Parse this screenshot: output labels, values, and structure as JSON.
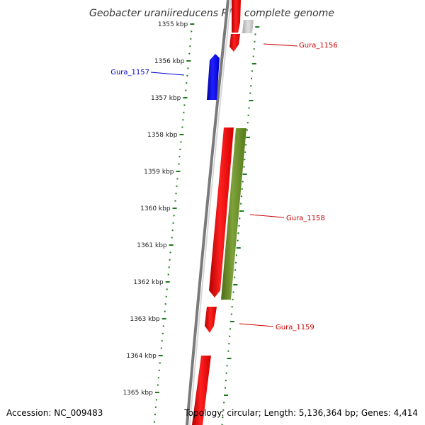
{
  "title": "Geobacter uraniireducens Rf4, complete genome",
  "positions": [
    "1355 kbp",
    "1356 kbp",
    "1357 kbp",
    "1358 kbp",
    "1359 kbp",
    "1360 kbp",
    "1361 kbp",
    "1362 kbp",
    "1363 kbp",
    "1364 kbp",
    "1365 kbp"
  ],
  "gene_labels": {
    "g1156": "Gura_1156",
    "g1157": "Gura_1157",
    "g1158": "Gura_1158",
    "g1159": "Gura_1159"
  },
  "colors": {
    "forward": "#ff0000",
    "reverse": "#0000ff",
    "rna": "#6b8e23",
    "pseudo": "#c0c0c0",
    "ticks": "#1a7a1a",
    "backbone": "#8a8a8a"
  },
  "footer": {
    "accession": "Accession: NC_009483",
    "topology": "Topology: circular; Length: 5,136,364 bp; Genes: 4,414"
  }
}
